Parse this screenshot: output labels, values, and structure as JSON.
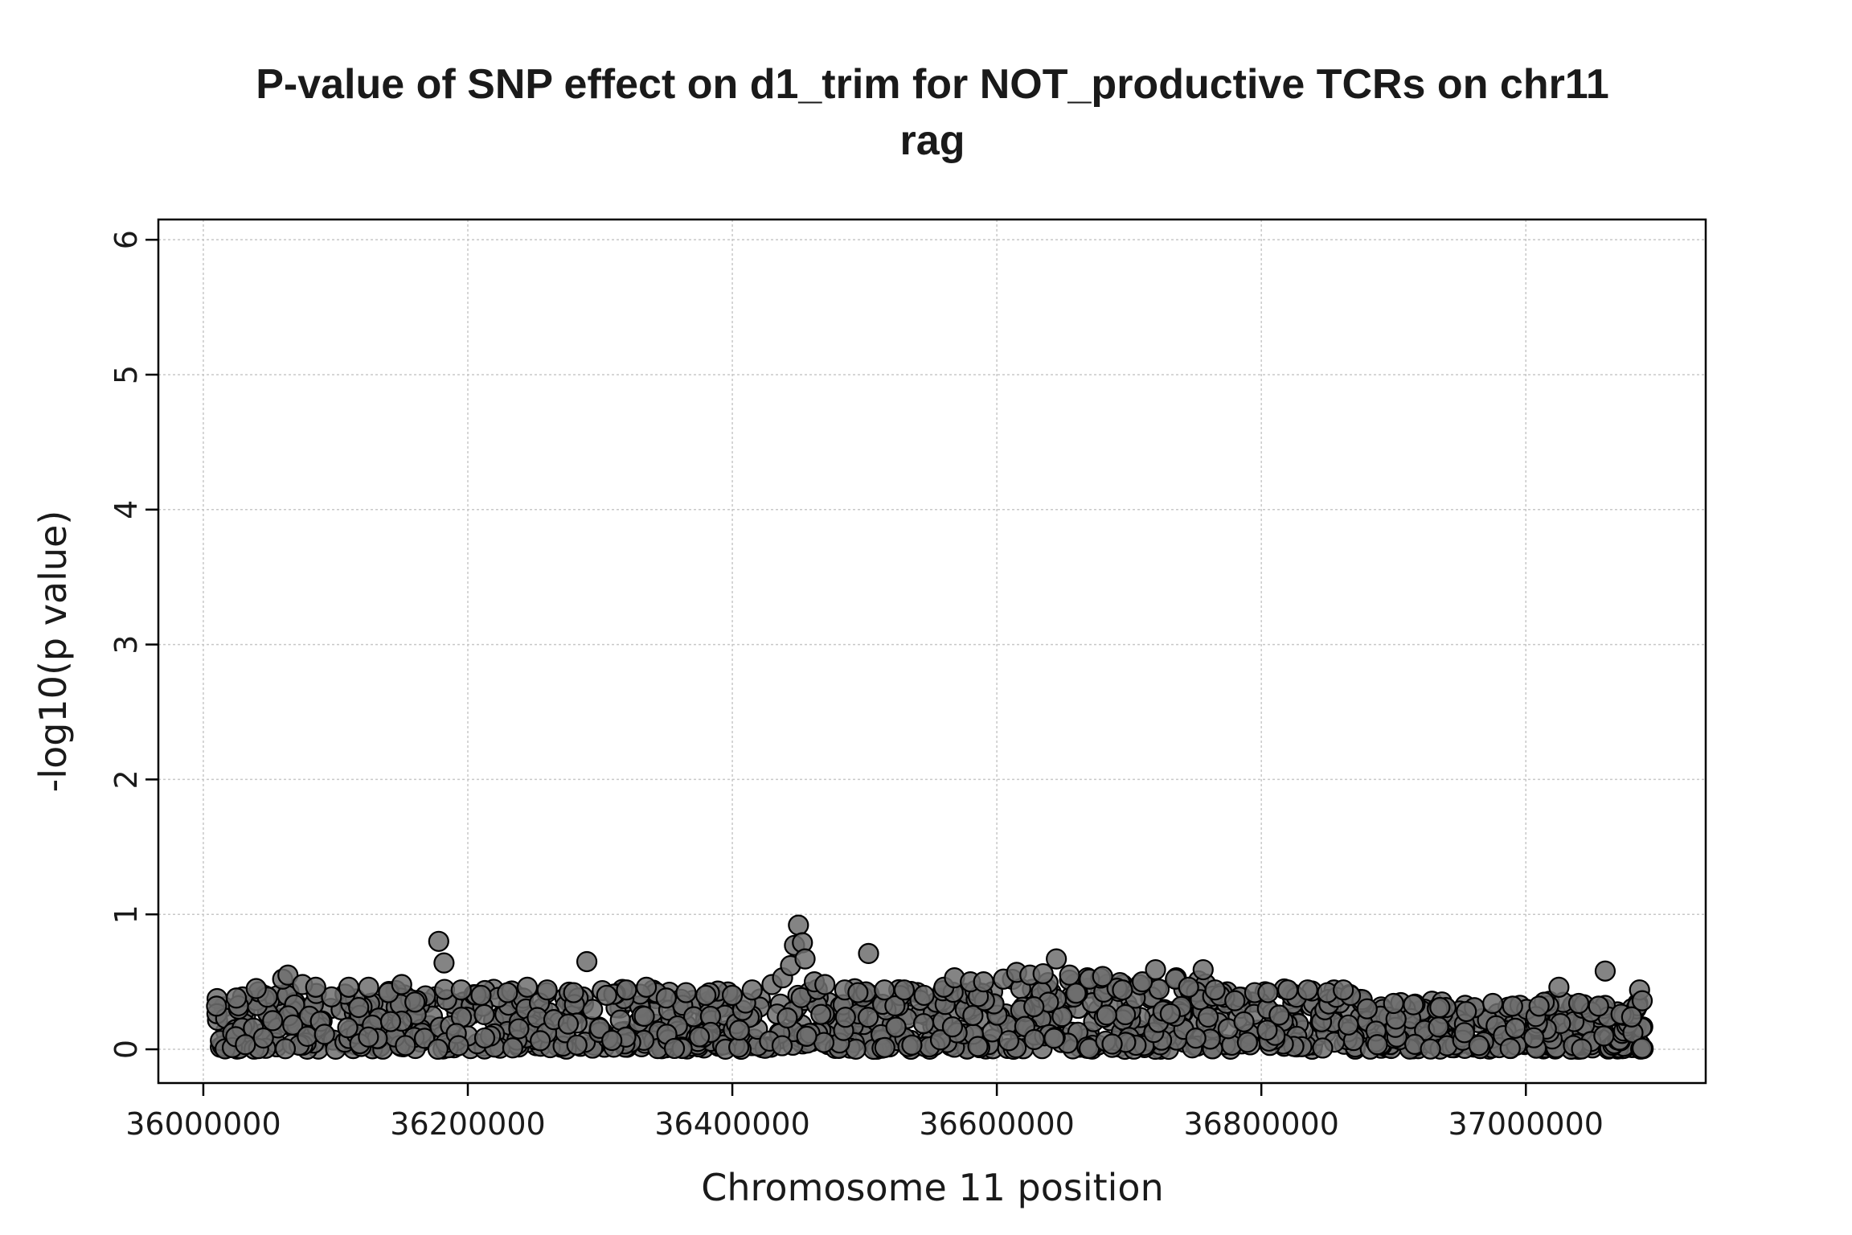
{
  "chart_data": {
    "type": "scatter",
    "title_lines": [
      "P-value of SNP effect on d1_trim for NOT_productive TCRs on chr11",
      "rag"
    ],
    "xlabel": "Chromosome 11 position",
    "ylabel": "-log10(p value)",
    "xlim": [
      35966000,
      37136000
    ],
    "ylim": [
      -0.25,
      6.15
    ],
    "x_ticks": [
      36000000,
      36200000,
      36400000,
      36600000,
      36800000,
      37000000
    ],
    "x_tick_labels": [
      "36000000",
      "36200000",
      "36400000",
      "36600000",
      "36800000",
      "37000000"
    ],
    "y_ticks": [
      0,
      1,
      2,
      3,
      4,
      5,
      6
    ],
    "y_tick_labels": [
      "0",
      "1",
      "2",
      "3",
      "4",
      "5",
      "6"
    ],
    "grid": true,
    "marker_fill": "#6e6e6e",
    "marker_edge": "#000000",
    "point_count_dense_band": 1200,
    "dense_band_x_range": [
      36010000,
      37090000
    ],
    "dense_band_y_range": [
      0.0,
      0.45
    ],
    "points": [
      {
        "x": 36010000,
        "y": 0.32
      },
      {
        "x": 36025000,
        "y": 0.38
      },
      {
        "x": 36040000,
        "y": 0.45
      },
      {
        "x": 36060000,
        "y": 0.52
      },
      {
        "x": 36064000,
        "y": 0.55
      },
      {
        "x": 36075000,
        "y": 0.48
      },
      {
        "x": 36085000,
        "y": 0.46
      },
      {
        "x": 36110000,
        "y": 0.46
      },
      {
        "x": 36125000,
        "y": 0.46
      },
      {
        "x": 36140000,
        "y": 0.42
      },
      {
        "x": 36150000,
        "y": 0.48
      },
      {
        "x": 36160000,
        "y": 0.35
      },
      {
        "x": 36178000,
        "y": 0.8
      },
      {
        "x": 36182000,
        "y": 0.64
      },
      {
        "x": 36195000,
        "y": 0.44
      },
      {
        "x": 36210000,
        "y": 0.4
      },
      {
        "x": 36230000,
        "y": 0.42
      },
      {
        "x": 36245000,
        "y": 0.46
      },
      {
        "x": 36260000,
        "y": 0.44
      },
      {
        "x": 36280000,
        "y": 0.42
      },
      {
        "x": 36290000,
        "y": 0.65
      },
      {
        "x": 36305000,
        "y": 0.4
      },
      {
        "x": 36320000,
        "y": 0.44
      },
      {
        "x": 36335000,
        "y": 0.46
      },
      {
        "x": 36350000,
        "y": 0.38
      },
      {
        "x": 36365000,
        "y": 0.42
      },
      {
        "x": 36380000,
        "y": 0.4
      },
      {
        "x": 36400000,
        "y": 0.4
      },
      {
        "x": 36415000,
        "y": 0.44
      },
      {
        "x": 36430000,
        "y": 0.48
      },
      {
        "x": 36438000,
        "y": 0.53
      },
      {
        "x": 36444000,
        "y": 0.62
      },
      {
        "x": 36447000,
        "y": 0.77
      },
      {
        "x": 36450000,
        "y": 0.92
      },
      {
        "x": 36453000,
        "y": 0.79
      },
      {
        "x": 36455000,
        "y": 0.67
      },
      {
        "x": 36462000,
        "y": 0.5
      },
      {
        "x": 36470000,
        "y": 0.48
      },
      {
        "x": 36485000,
        "y": 0.44
      },
      {
        "x": 36495000,
        "y": 0.42
      },
      {
        "x": 36503000,
        "y": 0.71
      },
      {
        "x": 36515000,
        "y": 0.44
      },
      {
        "x": 36530000,
        "y": 0.44
      },
      {
        "x": 36545000,
        "y": 0.4
      },
      {
        "x": 36560000,
        "y": 0.46
      },
      {
        "x": 36568000,
        "y": 0.53
      },
      {
        "x": 36580000,
        "y": 0.5
      },
      {
        "x": 36590000,
        "y": 0.5
      },
      {
        "x": 36605000,
        "y": 0.52
      },
      {
        "x": 36615000,
        "y": 0.57
      },
      {
        "x": 36625000,
        "y": 0.55
      },
      {
        "x": 36635000,
        "y": 0.56
      },
      {
        "x": 36645000,
        "y": 0.67
      },
      {
        "x": 36655000,
        "y": 0.55
      },
      {
        "x": 36670000,
        "y": 0.52
      },
      {
        "x": 36680000,
        "y": 0.54
      },
      {
        "x": 36695000,
        "y": 0.44
      },
      {
        "x": 36710000,
        "y": 0.5
      },
      {
        "x": 36720000,
        "y": 0.59
      },
      {
        "x": 36735000,
        "y": 0.52
      },
      {
        "x": 36745000,
        "y": 0.46
      },
      {
        "x": 36756000,
        "y": 0.59
      },
      {
        "x": 36765000,
        "y": 0.44
      },
      {
        "x": 36780000,
        "y": 0.36
      },
      {
        "x": 36795000,
        "y": 0.42
      },
      {
        "x": 36805000,
        "y": 0.42
      },
      {
        "x": 36820000,
        "y": 0.44
      },
      {
        "x": 36835000,
        "y": 0.44
      },
      {
        "x": 36850000,
        "y": 0.42
      },
      {
        "x": 36862000,
        "y": 0.44
      },
      {
        "x": 36880000,
        "y": 0.3
      },
      {
        "x": 36900000,
        "y": 0.34
      },
      {
        "x": 36915000,
        "y": 0.33
      },
      {
        "x": 36935000,
        "y": 0.31
      },
      {
        "x": 36955000,
        "y": 0.28
      },
      {
        "x": 36975000,
        "y": 0.34
      },
      {
        "x": 36990000,
        "y": 0.32
      },
      {
        "x": 37010000,
        "y": 0.32
      },
      {
        "x": 37025000,
        "y": 0.46
      },
      {
        "x": 37040000,
        "y": 0.34
      },
      {
        "x": 37055000,
        "y": 0.32
      },
      {
        "x": 37060000,
        "y": 0.58
      },
      {
        "x": 37072000,
        "y": 0.26
      },
      {
        "x": 37080000,
        "y": 0.24
      },
      {
        "x": 37086000,
        "y": 0.44
      },
      {
        "x": 37088000,
        "y": 0.36
      }
    ]
  }
}
